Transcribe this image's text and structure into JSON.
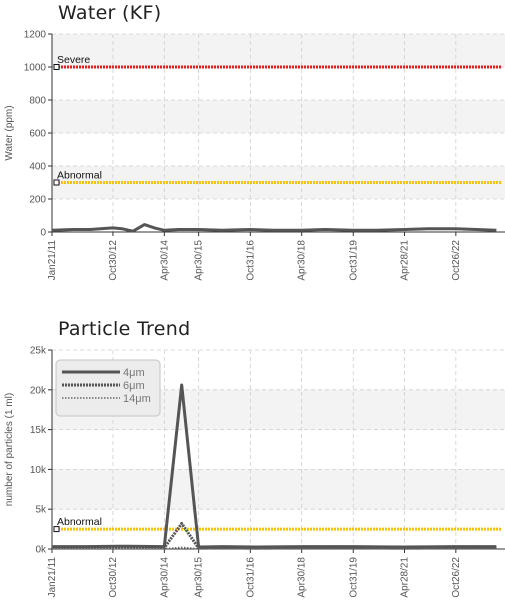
{
  "chart_data": [
    {
      "type": "line",
      "title": "Water (KF)",
      "ylabel": "Water (ppm)",
      "ylim": [
        0,
        1200
      ],
      "yticks": [
        0,
        200,
        400,
        600,
        800,
        1000,
        1200
      ],
      "ytick_labels": [
        "0",
        "200",
        "400",
        "600",
        "800",
        "1000",
        "1200"
      ],
      "xlim": [
        "2011-01-21",
        "2024-04-01"
      ],
      "xtick_labels": [
        "Jan21/11",
        "Oct30/12",
        "Apr30/14",
        "Apr30/15",
        "Oct31/16",
        "Apr30/18",
        "Oct31/19",
        "Apr28/21",
        "Oct26/22"
      ],
      "xtick_dates": [
        "2011-01-21",
        "2012-10-30",
        "2014-04-30",
        "2015-04-30",
        "2016-10-31",
        "2018-04-30",
        "2019-10-31",
        "2021-04-28",
        "2022-10-26"
      ],
      "grid": true,
      "thresholds": [
        {
          "label": "Severe",
          "value": 1000,
          "color": "#e02020"
        },
        {
          "label": "Abnormal",
          "value": 300,
          "color": "#f4c20d"
        }
      ],
      "series": [
        {
          "color": "#555555",
          "x": [
            "2011-01-21",
            "2011-09-01",
            "2012-03-01",
            "2012-10-30",
            "2013-02-01",
            "2013-06-01",
            "2013-10-01",
            "2014-01-15",
            "2014-04-30",
            "2014-10-01",
            "2015-04-30",
            "2016-01-01",
            "2016-10-31",
            "2017-07-01",
            "2018-04-30",
            "2019-01-01",
            "2019-10-31",
            "2020-06-01",
            "2021-04-28",
            "2022-01-01",
            "2022-10-26",
            "2023-06-01",
            "2024-01-01"
          ],
          "y": [
            10,
            15,
            15,
            25,
            20,
            5,
            45,
            25,
            10,
            15,
            15,
            10,
            15,
            10,
            10,
            15,
            10,
            10,
            15,
            20,
            20,
            15,
            10
          ]
        }
      ]
    },
    {
      "type": "line",
      "title": "Particle Trend",
      "ylabel": "number of particles (1 ml)",
      "ylim": [
        0,
        25000
      ],
      "yticks": [
        0,
        5000,
        10000,
        15000,
        20000,
        25000
      ],
      "ytick_labels": [
        "0k",
        "5k",
        "10k",
        "15k",
        "20k",
        "25k"
      ],
      "xlim": [
        "2011-01-21",
        "2024-04-01"
      ],
      "xtick_labels": [
        "Jan21/11",
        "Oct30/12",
        "Apr30/14",
        "Apr30/15",
        "Oct31/16",
        "Apr30/18",
        "Oct31/19",
        "Apr28/21",
        "Oct26/22"
      ],
      "xtick_dates": [
        "2011-01-21",
        "2012-10-30",
        "2014-04-30",
        "2015-04-30",
        "2016-10-31",
        "2018-04-30",
        "2019-10-31",
        "2021-04-28",
        "2022-10-26"
      ],
      "grid": true,
      "legend_position": "top-left",
      "thresholds": [
        {
          "label": "Abnormal",
          "value": 2500,
          "color": "#f4c20d"
        }
      ],
      "series": [
        {
          "name": "4μm",
          "color": "#555555",
          "style": "solid",
          "x": [
            "2011-01-21",
            "2012-01-01",
            "2013-01-01",
            "2014-04-30",
            "2014-11-01",
            "2015-04-30",
            "2016-01-01",
            "2017-01-01",
            "2018-04-30",
            "2019-10-31",
            "2021-04-28",
            "2022-10-26",
            "2024-01-01"
          ],
          "y": [
            300,
            300,
            350,
            300,
            20600,
            250,
            300,
            250,
            300,
            300,
            250,
            300,
            300
          ]
        },
        {
          "name": "6μm",
          "color": "#555555",
          "style": "dense-dash",
          "x": [
            "2011-01-21",
            "2012-01-01",
            "2013-01-01",
            "2014-04-30",
            "2014-11-01",
            "2015-04-30",
            "2016-01-01",
            "2017-01-01",
            "2018-04-30",
            "2019-10-31",
            "2021-04-28",
            "2022-10-26",
            "2024-01-01"
          ],
          "y": [
            150,
            150,
            150,
            150,
            3200,
            100,
            150,
            100,
            150,
            150,
            100,
            150,
            150
          ]
        },
        {
          "name": "14μm",
          "color": "#666666",
          "style": "light-dash",
          "x": [
            "2011-01-21",
            "2012-01-01",
            "2013-01-01",
            "2014-04-30",
            "2014-11-01",
            "2015-04-30",
            "2016-01-01",
            "2017-01-01",
            "2018-04-30",
            "2019-10-31",
            "2021-04-28",
            "2022-10-26",
            "2024-01-01"
          ],
          "y": [
            30,
            30,
            30,
            30,
            200,
            20,
            30,
            20,
            30,
            30,
            20,
            30,
            30
          ]
        }
      ]
    }
  ]
}
